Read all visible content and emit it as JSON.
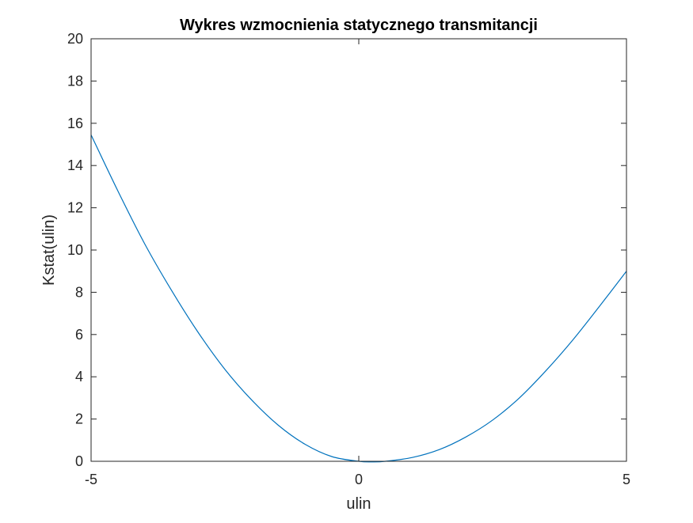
{
  "chart_data": {
    "type": "line",
    "title": "Wykres wzmocnienia statycznego transmitancji",
    "xlabel": "ulin",
    "ylabel": "Kstat(ulin)",
    "xlim": [
      -5,
      5
    ],
    "ylim": [
      0,
      20
    ],
    "xticks": [
      -5,
      0,
      5
    ],
    "yticks": [
      0,
      2,
      4,
      6,
      8,
      10,
      12,
      14,
      16,
      18,
      20
    ],
    "grid": false,
    "legend": "none",
    "series": [
      {
        "color": "#0072BD",
        "x": [
          -5,
          -4.5,
          -4,
          -3.5,
          -3,
          -2.5,
          -2,
          -1.5,
          -1,
          -0.5,
          0,
          0.25,
          0.5,
          1,
          1.5,
          2,
          2.5,
          3,
          3.5,
          4,
          4.5,
          5
        ],
        "y": [
          15.45,
          12.8,
          10.3,
          8.1,
          6.1,
          4.35,
          2.9,
          1.7,
          0.8,
          0.22,
          0.0,
          -0.03,
          0.0,
          0.18,
          0.55,
          1.15,
          1.95,
          3.0,
          4.3,
          5.75,
          7.35,
          9.0
        ]
      }
    ]
  }
}
